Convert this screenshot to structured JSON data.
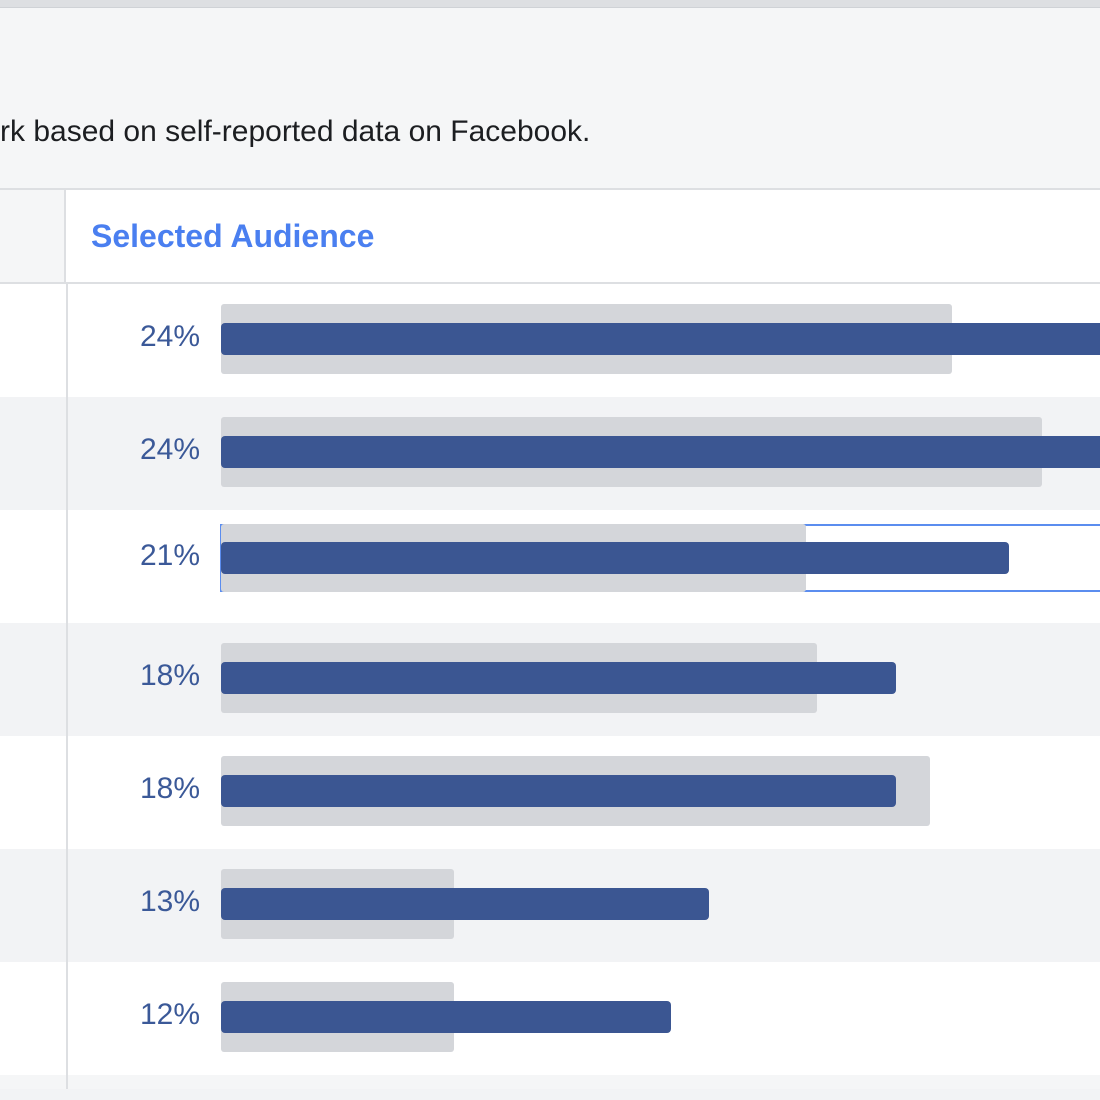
{
  "description": "rk based on self-reported data on Facebook.",
  "header": {
    "column_title": "Selected Audience"
  },
  "colors": {
    "audience_bar": "#3b5692",
    "comparison_track": "#d4d6da",
    "header_title": "#4a7ff0",
    "percent_text": "#3b5998"
  },
  "rows": [
    {
      "percent_label": "24%",
      "audience_value": 24,
      "comparison_value": 19.5,
      "selected": false
    },
    {
      "percent_label": "24%",
      "audience_value": 24,
      "comparison_value": 21.9,
      "selected": false
    },
    {
      "percent_label": "21%",
      "audience_value": 21,
      "comparison_value": 15.6,
      "selected": true
    },
    {
      "percent_label": "18%",
      "audience_value": 18,
      "comparison_value": 15.9,
      "selected": false
    },
    {
      "percent_label": "18%",
      "audience_value": 18,
      "comparison_value": 18.9,
      "selected": false
    },
    {
      "percent_label": "13%",
      "audience_value": 13,
      "comparison_value": 6.2,
      "selected": false
    },
    {
      "percent_label": "12%",
      "audience_value": 12,
      "comparison_value": 6.2,
      "selected": false
    }
  ]
}
